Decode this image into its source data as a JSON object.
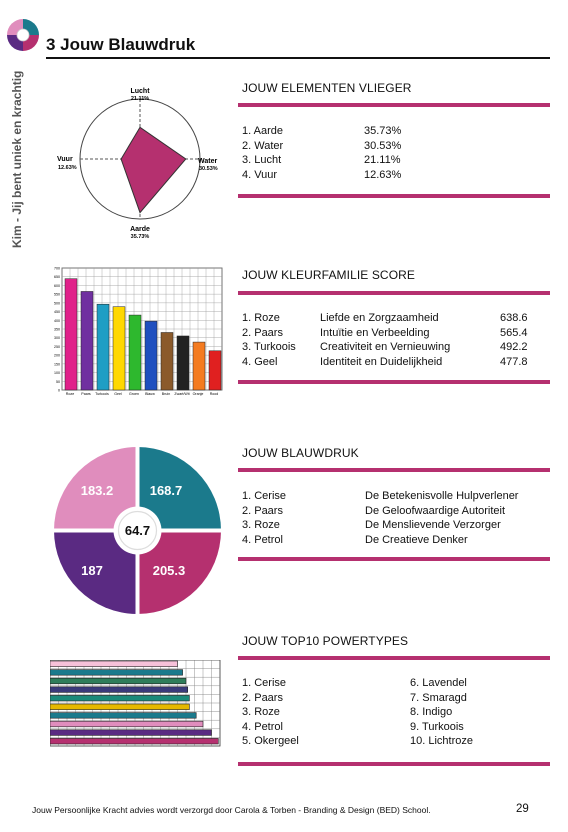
{
  "header": {
    "title": "3 Jouw Blauwdruk",
    "side_text": "Kim - Jij bent uniek en krachtig"
  },
  "sections": {
    "elements": {
      "heading": "JOUW ELEMENTEN VLIEGER",
      "items": [
        {
          "label": "1. Aarde",
          "value": "35.73%"
        },
        {
          "label": "2. Water",
          "value": "30.53%"
        },
        {
          "label": "3. Lucht",
          "value": "21.11%"
        },
        {
          "label": "4. Vuur",
          "value": "12.63%"
        }
      ]
    },
    "colors": {
      "heading": "JOUW KLEURFAMILIE SCORE",
      "items": [
        {
          "label": "1. Roze",
          "desc": "Liefde en Zorgzaamheid",
          "value": "638.6"
        },
        {
          "label": "2. Paars",
          "desc": "Intuïtie en Verbeelding",
          "value": "565.4"
        },
        {
          "label": "3. Turkoois",
          "desc": "Creativiteit en Vernieuwing",
          "value": "492.2"
        },
        {
          "label": "4. Geel",
          "desc": "Identiteit en Duidelijkheid",
          "value": "477.8"
        }
      ]
    },
    "blueprint": {
      "heading": "JOUW BLAUWDRUK",
      "items": [
        {
          "label": "1. Cerise",
          "desc": "De Betekenisvolle Hulpverlener"
        },
        {
          "label": "2. Paars",
          "desc": "De Geloofwaardige Autoriteit"
        },
        {
          "label": "3. Roze",
          "desc": "De Menslievende Verzorger"
        },
        {
          "label": "4. Petrol",
          "desc": "De Creatieve Denker"
        }
      ]
    },
    "powertypes": {
      "heading": "JOUW TOP10 POWERTYPES",
      "left": [
        "1.  Cerise",
        "2.  Paars",
        "3.  Roze",
        "4.  Petrol",
        "5.  Okergeel"
      ],
      "right": [
        "6.  Lavendel",
        "7.  Smaragd",
        "8.  Indigo",
        "9.  Turkoois",
        "10. Lichtroze"
      ]
    }
  },
  "chart_data": [
    {
      "type": "radar",
      "axes": [
        {
          "name": "Lucht",
          "label": "21.11%",
          "value": 21.11
        },
        {
          "name": "Water",
          "label": "30.53%",
          "value": 30.53
        },
        {
          "name": "Aarde",
          "label": "35.73%",
          "value": 35.73
        },
        {
          "name": "Vuur",
          "label": "12.63%",
          "value": 12.63
        }
      ],
      "range": [
        0,
        40
      ],
      "fill_color": "#b5306f"
    },
    {
      "type": "bar",
      "categories": [
        "Roze",
        "Paars",
        "Turkoois",
        "Geel",
        "Groen",
        "Blauw",
        "Bruin",
        "Zwart/Wit",
        "Oranje",
        "Rood"
      ],
      "values": [
        638.6,
        565.4,
        492.2,
        477.8,
        430,
        395,
        330,
        310,
        275,
        225
      ],
      "colors": [
        "#e0218a",
        "#7030a0",
        "#1f9ec4",
        "#ffd800",
        "#2eb82e",
        "#1f4fbf",
        "#8b5a2b",
        "#222222",
        "#f47b20",
        "#e02020"
      ],
      "yticks": [
        "700",
        "650",
        "600",
        "550",
        "500",
        "450",
        "400",
        "350",
        "300",
        "250",
        "200",
        "150",
        "100",
        "50",
        "0"
      ],
      "ylim": [
        0,
        700
      ]
    },
    {
      "type": "pie",
      "center_value": "64.7",
      "slices": [
        {
          "value": "168.7",
          "color": "#1b7a8c"
        },
        {
          "value": "205.3",
          "color": "#b5306f"
        },
        {
          "value": "187",
          "color": "#5a2a82"
        },
        {
          "value": "183.2",
          "color": "#e08dbd"
        }
      ]
    },
    {
      "type": "bar-horizontal",
      "values": [
        75,
        78,
        80,
        81,
        82,
        82,
        86,
        90,
        95,
        99
      ],
      "colors": [
        "#f7c1d9",
        "#1b7a8c",
        "#2f7d5a",
        "#3a3a7a",
        "#1b8a7a",
        "#e5b800",
        "#1b7a8c",
        "#e08dbd",
        "#5a2a82",
        "#b5306f"
      ],
      "xlim": [
        0,
        100
      ]
    }
  ],
  "footer": {
    "text": "Jouw Persoonlijke Kracht advies wordt verzorgd door Carola & Torben - Branding & Design (BED) School.",
    "page": "29"
  }
}
